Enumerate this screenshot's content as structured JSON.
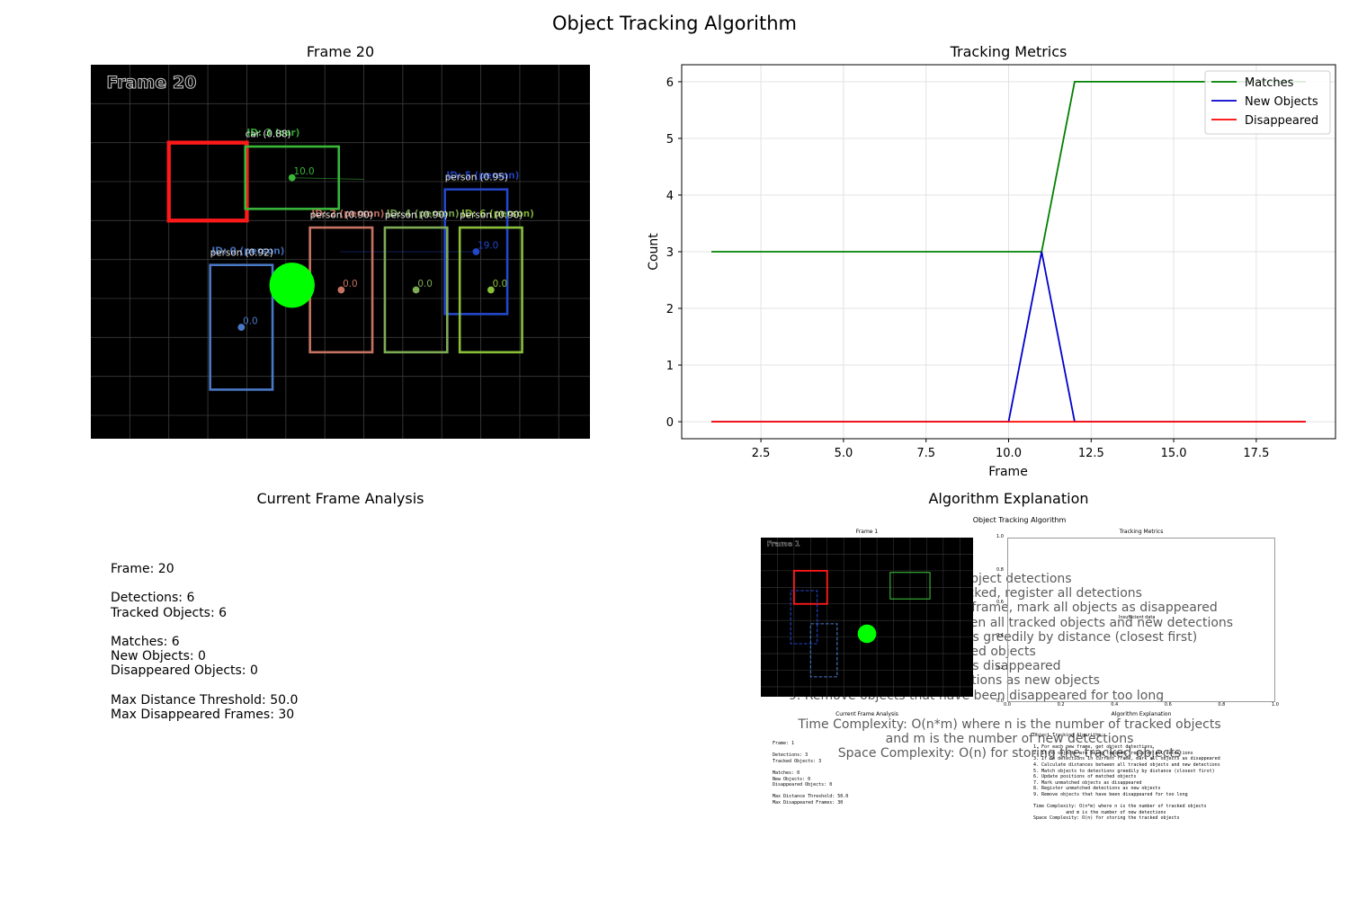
{
  "figure": {
    "title": "Object Tracking Algorithm"
  },
  "frame_panel": {
    "title": "Frame 20",
    "overlay_label": "Frame 20",
    "image_width": 640,
    "image_height": 480,
    "boxes": [
      {
        "label": "car (0.88)",
        "overlay_label": "ID: 3 (car)",
        "color": "#39b739",
        "x1": 198,
        "y1": 105,
        "x2": 318,
        "y2": 185,
        "centroid": [
          258,
          145
        ],
        "id_text": "10.0",
        "track_to": [
          350,
          147
        ]
      },
      {
        "label": "person (0.95)",
        "overlay_label": "ID: 5 (person)",
        "color": "#2446c8",
        "x1": 454,
        "y1": 160,
        "x2": 534,
        "y2": 320,
        "centroid": [
          494,
          240
        ],
        "id_text": "19.0",
        "track_to": [
          320,
          240
        ]
      },
      {
        "label": "person (0.92)",
        "overlay_label": "ID: 0 (person)",
        "color": "#4a78c5",
        "x1": 153,
        "y1": 257,
        "x2": 233,
        "y2": 417,
        "centroid": [
          193,
          337
        ],
        "id_text": "0.0"
      },
      {
        "label": "person (0.90)",
        "overlay_label": "ID: 2 (person)",
        "color": "#c77363",
        "x1": 281,
        "y1": 209,
        "x2": 361,
        "y2": 369,
        "centroid": [
          321,
          289
        ],
        "id_text": "0.0"
      },
      {
        "label": "person (0.90)",
        "overlay_label": "ID: 4 (person)",
        "color": "#7fab55",
        "x1": 377,
        "y1": 209,
        "x2": 457,
        "y2": 369,
        "centroid": [
          417,
          289
        ],
        "id_text": "0.0"
      },
      {
        "label": "person (0.90)",
        "overlay_label": "ID: 6 (person)",
        "color": "#8abf3a",
        "x1": 473,
        "y1": 209,
        "x2": 553,
        "y2": 369,
        "centroid": [
          513,
          289
        ],
        "id_text": "0.0"
      }
    ],
    "red_rect": {
      "x1": 100,
      "y1": 100,
      "x2": 200,
      "y2": 200,
      "color": "#ff1a1a"
    },
    "green_circle": {
      "cx": 258,
      "cy": 283,
      "r": 29,
      "color": "#00ff00"
    }
  },
  "chart_data": {
    "type": "line",
    "title": "Tracking Metrics",
    "xlabel": "Frame",
    "ylabel": "Count",
    "xlim": [
      0.1,
      19.9
    ],
    "ylim": [
      -0.3,
      6.3
    ],
    "grid": true,
    "legend_position": "top-right",
    "x_ticks": [
      2.5,
      5.0,
      7.5,
      10.0,
      12.5,
      15.0,
      17.5
    ],
    "x_tick_labels": [
      "2.5",
      "5.0",
      "7.5",
      "10.0",
      "12.5",
      "15.0",
      "17.5"
    ],
    "y_ticks": [
      0,
      1,
      2,
      3,
      4,
      5,
      6
    ],
    "y_tick_labels": [
      "0",
      "1",
      "2",
      "3",
      "4",
      "5",
      "6"
    ],
    "x": [
      1,
      2,
      3,
      4,
      5,
      6,
      7,
      8,
      9,
      10,
      11,
      12,
      13,
      14,
      15,
      16,
      17,
      18,
      19
    ],
    "series": [
      {
        "name": "Matches",
        "color": "#008000",
        "values": [
          3,
          3,
          3,
          3,
          3,
          3,
          3,
          3,
          3,
          3,
          3,
          6,
          6,
          6,
          6,
          6,
          6,
          6,
          6
        ]
      },
      {
        "name": "New Objects",
        "color": "#0000cc",
        "values": [
          0,
          0,
          0,
          0,
          0,
          0,
          0,
          0,
          0,
          0,
          3,
          0,
          0,
          0,
          0,
          0,
          0,
          0,
          0
        ]
      },
      {
        "name": "Disappeared",
        "color": "#ff0000",
        "values": [
          0,
          0,
          0,
          0,
          0,
          0,
          0,
          0,
          0,
          0,
          0,
          0,
          0,
          0,
          0,
          0,
          0,
          0,
          0
        ]
      }
    ]
  },
  "analysis": {
    "title": "Current Frame Analysis",
    "lines": [
      "Frame: 20",
      "",
      "Detections: 6",
      "Tracked Objects: 6",
      "",
      "Matches: 6",
      "New Objects: 0",
      "Disappeared Objects: 0",
      "",
      "Max Distance Threshold: 50.0",
      "Max Disappeared Frames: 30"
    ]
  },
  "explanation": {
    "title": "Algorithm Explanation",
    "steps": [
      "1. For each new frame, get object detections",
      "2. If no objects are being tracked, register all detections",
      "3. If no detections in current frame, mark all objects as disappeared",
      "4. Calculate distances between all tracked objects and new detections",
      "5. Match objects to detections greedily by distance (closest first)",
      "6. Update positions of matched objects",
      "7. Mark unmatched objects as disappeared",
      "8. Register unmatched detections as new objects",
      "9. Remove objects that have been disappeared for too long"
    ],
    "complexity": [
      "Time Complexity: O(n*m) where n is the number of tracked objects",
      "and m is the number of new detections",
      "Space Complexity: O(n) for storing the tracked objects"
    ]
  },
  "thumbnail": {
    "suptitle": "Object Tracking Algorithm",
    "frame_title": "Frame 1",
    "frame_overlay": "Frame 1",
    "metrics_title": "Tracking Metrics",
    "metrics_note": "Insufficient data",
    "x_tick_labels": [
      "0.0",
      "0.2",
      "0.4",
      "0.6",
      "0.8",
      "1.0"
    ],
    "y_tick_labels": [
      "0.0",
      "0.2",
      "0.4",
      "0.6",
      "0.8",
      "1.0"
    ],
    "analysis_title": "Current Frame Analysis",
    "analysis_lines": [
      "Frame: 1",
      "",
      "Detections: 3",
      "Tracked Objects: 3",
      "",
      "Matches: 0",
      "New Objects: 0",
      "Disappeared Objects: 0",
      "",
      "Max Distance Threshold: 50.0",
      "Max Disappeared Frames: 30"
    ],
    "explanation_title": "Algorithm Explanation",
    "explanation_lines": [
      "Object Tracking Algorithm:",
      "",
      "1. For each new frame, get object detections",
      "2. If no objects are being tracked, register all detections",
      "3. If no detections in current frame, mark all objects as disappeared",
      "4. Calculate distances between all tracked objects and new detections",
      "5. Match objects to detections greedily by distance (closest first)",
      "6. Update positions of matched objects",
      "7. Mark unmatched objects as disappeared",
      "8. Register unmatched detections as new objects",
      "9. Remove objects that have been disappeared for too long",
      "",
      "Time Complexity: O(n*m) where n is the number of tracked objects",
      "            and m is the number of new detections",
      "Space Complexity: O(n) for storing the tracked objects"
    ]
  }
}
